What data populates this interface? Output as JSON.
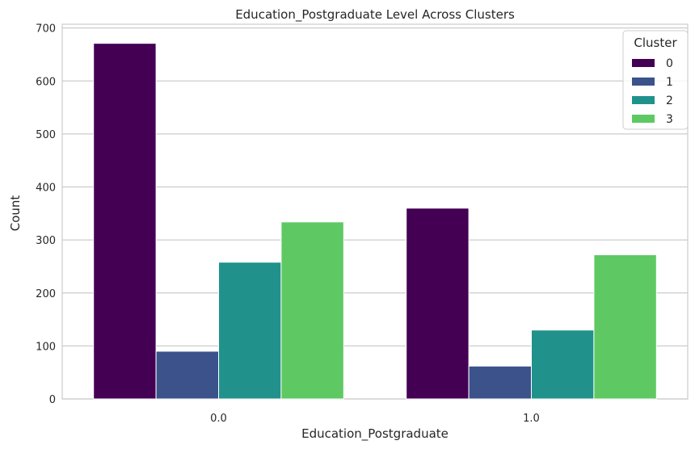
{
  "chart_data": {
    "type": "bar",
    "title": "Education_Postgraduate Level Across Clusters",
    "xlabel": "Education_Postgraduate",
    "ylabel": "Count",
    "categories": [
      "0.0",
      "1.0"
    ],
    "ylim": [
      0,
      700
    ],
    "yticks": [
      "0",
      "100",
      "200",
      "300",
      "400",
      "500",
      "600",
      "700"
    ],
    "grid": true,
    "legend": {
      "title": "Cluster",
      "placement": "top-right"
    },
    "series": [
      {
        "name": "0",
        "color": "#440154",
        "values": [
          671,
          360
        ]
      },
      {
        "name": "1",
        "color": "#3b528b",
        "values": [
          90,
          62
        ]
      },
      {
        "name": "2",
        "color": "#21918c",
        "values": [
          258,
          130
        ]
      },
      {
        "name": "3",
        "color": "#5ec962",
        "values": [
          334,
          272
        ]
      }
    ]
  }
}
